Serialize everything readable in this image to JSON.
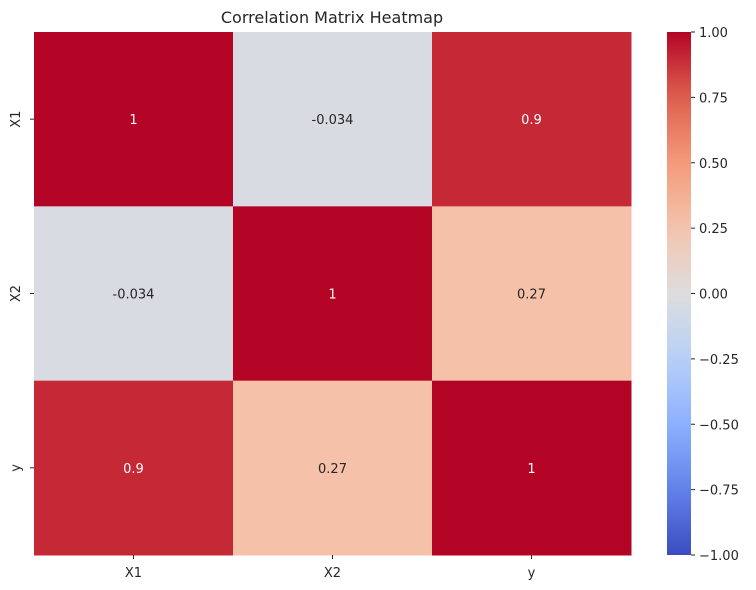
{
  "chart_data": {
    "type": "heatmap",
    "title": "Correlation Matrix Heatmap",
    "xlabel": "",
    "ylabel": "",
    "x_categories": [
      "X1",
      "X2",
      "y"
    ],
    "y_categories": [
      "X1",
      "X2",
      "y"
    ],
    "values": [
      [
        1.0,
        -0.034,
        0.9
      ],
      [
        -0.034,
        1.0,
        0.27
      ],
      [
        0.9,
        0.27,
        1.0
      ]
    ],
    "annotations": [
      [
        "1",
        "-0.034",
        "0.9"
      ],
      [
        "-0.034",
        "1",
        "0.27"
      ],
      [
        "0.9",
        "0.27",
        "1"
      ]
    ],
    "colormap": "coolwarm",
    "vmin": -1.0,
    "vmax": 1.0,
    "colorbar_ticks": [
      "1.00",
      "0.75",
      "0.50",
      "0.25",
      "0.00",
      "−0.25",
      "−0.50",
      "−0.75",
      "−1.00"
    ],
    "colorbar_tick_values": [
      1.0,
      0.75,
      0.5,
      0.25,
      0.0,
      -0.25,
      -0.5,
      -0.75,
      -1.0
    ],
    "colors": {
      "text_dark": "#262626",
      "text_light": "#ffffff",
      "tick": "#262626"
    }
  }
}
